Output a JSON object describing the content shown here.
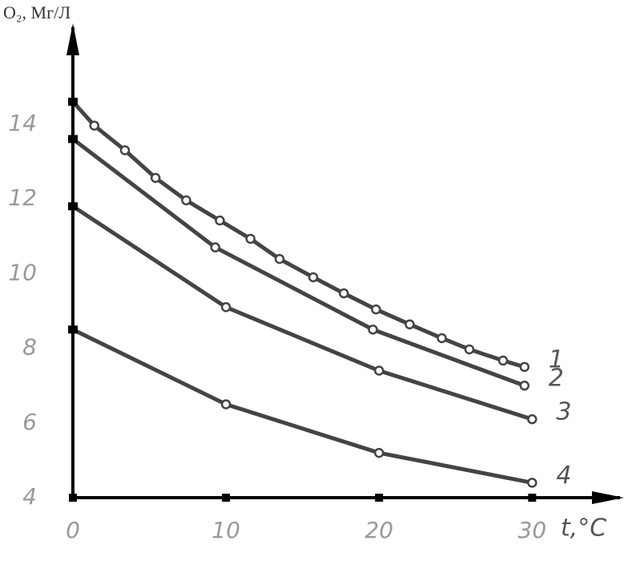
{
  "chart_data": {
    "type": "line",
    "y_label": "O₂, Мг/Л",
    "x_label": "t,°C",
    "xlim": [
      0,
      36
    ],
    "xticks": [
      0,
      10,
      20,
      30
    ],
    "ylim": [
      4,
      16.7
    ],
    "yticks": [
      4,
      6,
      8,
      10,
      12,
      14
    ],
    "series": [
      {
        "name": "1",
        "color": "#444444",
        "x": [
          0,
          1.4,
          3.4,
          5.4,
          7.4,
          9.6,
          11.6,
          13.5,
          15.7,
          17.7,
          19.8,
          22.0,
          24.1,
          25.9,
          28.1,
          29.5
        ],
        "values": [
          14.6,
          13.96,
          13.3,
          12.56,
          11.96,
          11.42,
          10.93,
          10.39,
          9.9,
          9.47,
          9.04,
          8.64,
          8.27,
          7.97,
          7.67,
          7.5
        ]
      },
      {
        "name": "2",
        "color": "#444444",
        "x": [
          0,
          9.3,
          19.6,
          29.5
        ],
        "values": [
          13.6,
          10.7,
          8.5,
          7.0
        ]
      },
      {
        "name": "3",
        "color": "#444444",
        "x": [
          0,
          10,
          20,
          30
        ],
        "values": [
          11.8,
          9.1,
          7.4,
          6.1
        ]
      },
      {
        "name": "4",
        "color": "#444444",
        "x": [
          0,
          10,
          20,
          30
        ],
        "values": [
          8.5,
          6.5,
          5.2,
          4.4
        ]
      }
    ]
  }
}
